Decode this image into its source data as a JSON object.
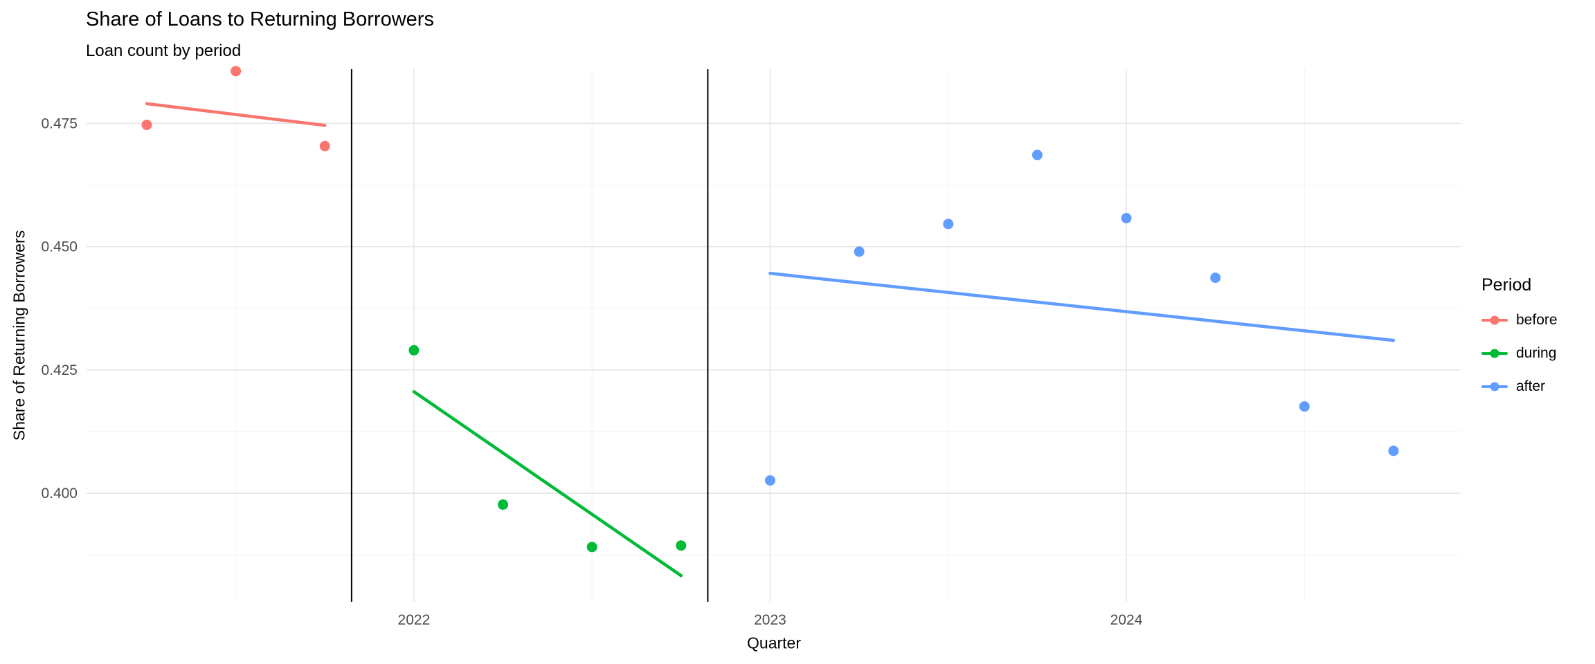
{
  "chart_data": {
    "type": "scatter",
    "title": "Share of Loans to Returning Borrowers",
    "subtitle": "Loan count by period",
    "xlabel": "Quarter",
    "ylabel": "Share of Returning Borrowers",
    "legend_title": "Period",
    "legend_position": "right",
    "grid": true,
    "background": "#ffffff",
    "grid_major_color": "#e5e5e5",
    "grid_minor_color": "#f2f2f2",
    "tick_label_color": "#4d4d4d",
    "quarters": [
      "2021 Q2",
      "2021 Q3",
      "2021 Q4",
      "2022 Q1",
      "2022 Q2",
      "2022 Q3",
      "2022 Q4",
      "2023 Q1",
      "2023 Q2",
      "2023 Q3",
      "2023 Q4",
      "2024 Q1",
      "2024 Q2",
      "2024 Q3",
      "2024 Q4"
    ],
    "series": [
      {
        "name": "before",
        "color": "#F8766D",
        "points": [
          {
            "quarter": "2021 Q2",
            "index": 0,
            "value": 0.4747
          },
          {
            "quarter": "2021 Q3",
            "index": 1,
            "value": 0.4856
          },
          {
            "quarter": "2021 Q4",
            "index": 2,
            "value": 0.4704
          }
        ],
        "trend": {
          "start_index": 0,
          "start_value": 0.479,
          "end_index": 2,
          "end_value": 0.4746
        }
      },
      {
        "name": "during",
        "color": "#00BA38",
        "points": [
          {
            "quarter": "2022 Q1",
            "index": 3,
            "value": 0.429
          },
          {
            "quarter": "2022 Q2",
            "index": 4,
            "value": 0.3977
          },
          {
            "quarter": "2022 Q3",
            "index": 5,
            "value": 0.3891
          },
          {
            "quarter": "2022 Q4",
            "index": 6,
            "value": 0.3894
          }
        ],
        "trend": {
          "start_index": 3,
          "start_value": 0.4206,
          "end_index": 6,
          "end_value": 0.3833
        }
      },
      {
        "name": "after",
        "color": "#619CFF",
        "points": [
          {
            "quarter": "2023 Q1",
            "index": 7,
            "value": 0.4026
          },
          {
            "quarter": "2023 Q2",
            "index": 8,
            "value": 0.449
          },
          {
            "quarter": "2023 Q3",
            "index": 9,
            "value": 0.4546
          },
          {
            "quarter": "2023 Q4",
            "index": 10,
            "value": 0.4686
          },
          {
            "quarter": "2024 Q1",
            "index": 11,
            "value": 0.4558
          },
          {
            "quarter": "2024 Q2",
            "index": 12,
            "value": 0.4437
          },
          {
            "quarter": "2024 Q3",
            "index": 13,
            "value": 0.4176
          },
          {
            "quarter": "2024 Q4",
            "index": 14,
            "value": 0.4086
          }
        ],
        "trend": {
          "start_index": 7,
          "start_value": 0.4446,
          "end_index": 14,
          "end_value": 0.431
        }
      }
    ],
    "y_ticks": [
      {
        "value": 0.4,
        "label": "0.400"
      },
      {
        "value": 0.425,
        "label": "0.425"
      },
      {
        "value": 0.45,
        "label": "0.450"
      },
      {
        "value": 0.475,
        "label": "0.475"
      }
    ],
    "y_minor_ticks": [
      0.3875,
      0.4125,
      0.4375,
      0.4625
    ],
    "x_ticks": [
      {
        "index": 3,
        "label": "2022"
      },
      {
        "index": 7,
        "label": "2023"
      },
      {
        "index": 11,
        "label": "2024"
      }
    ],
    "x_minor_indices": [
      1,
      5,
      9,
      13
    ],
    "ylim": [
      0.378,
      0.486
    ],
    "vlines": [
      {
        "index": 2.3,
        "color": "#000000"
      },
      {
        "index": 6.3,
        "color": "#000000"
      }
    ]
  }
}
